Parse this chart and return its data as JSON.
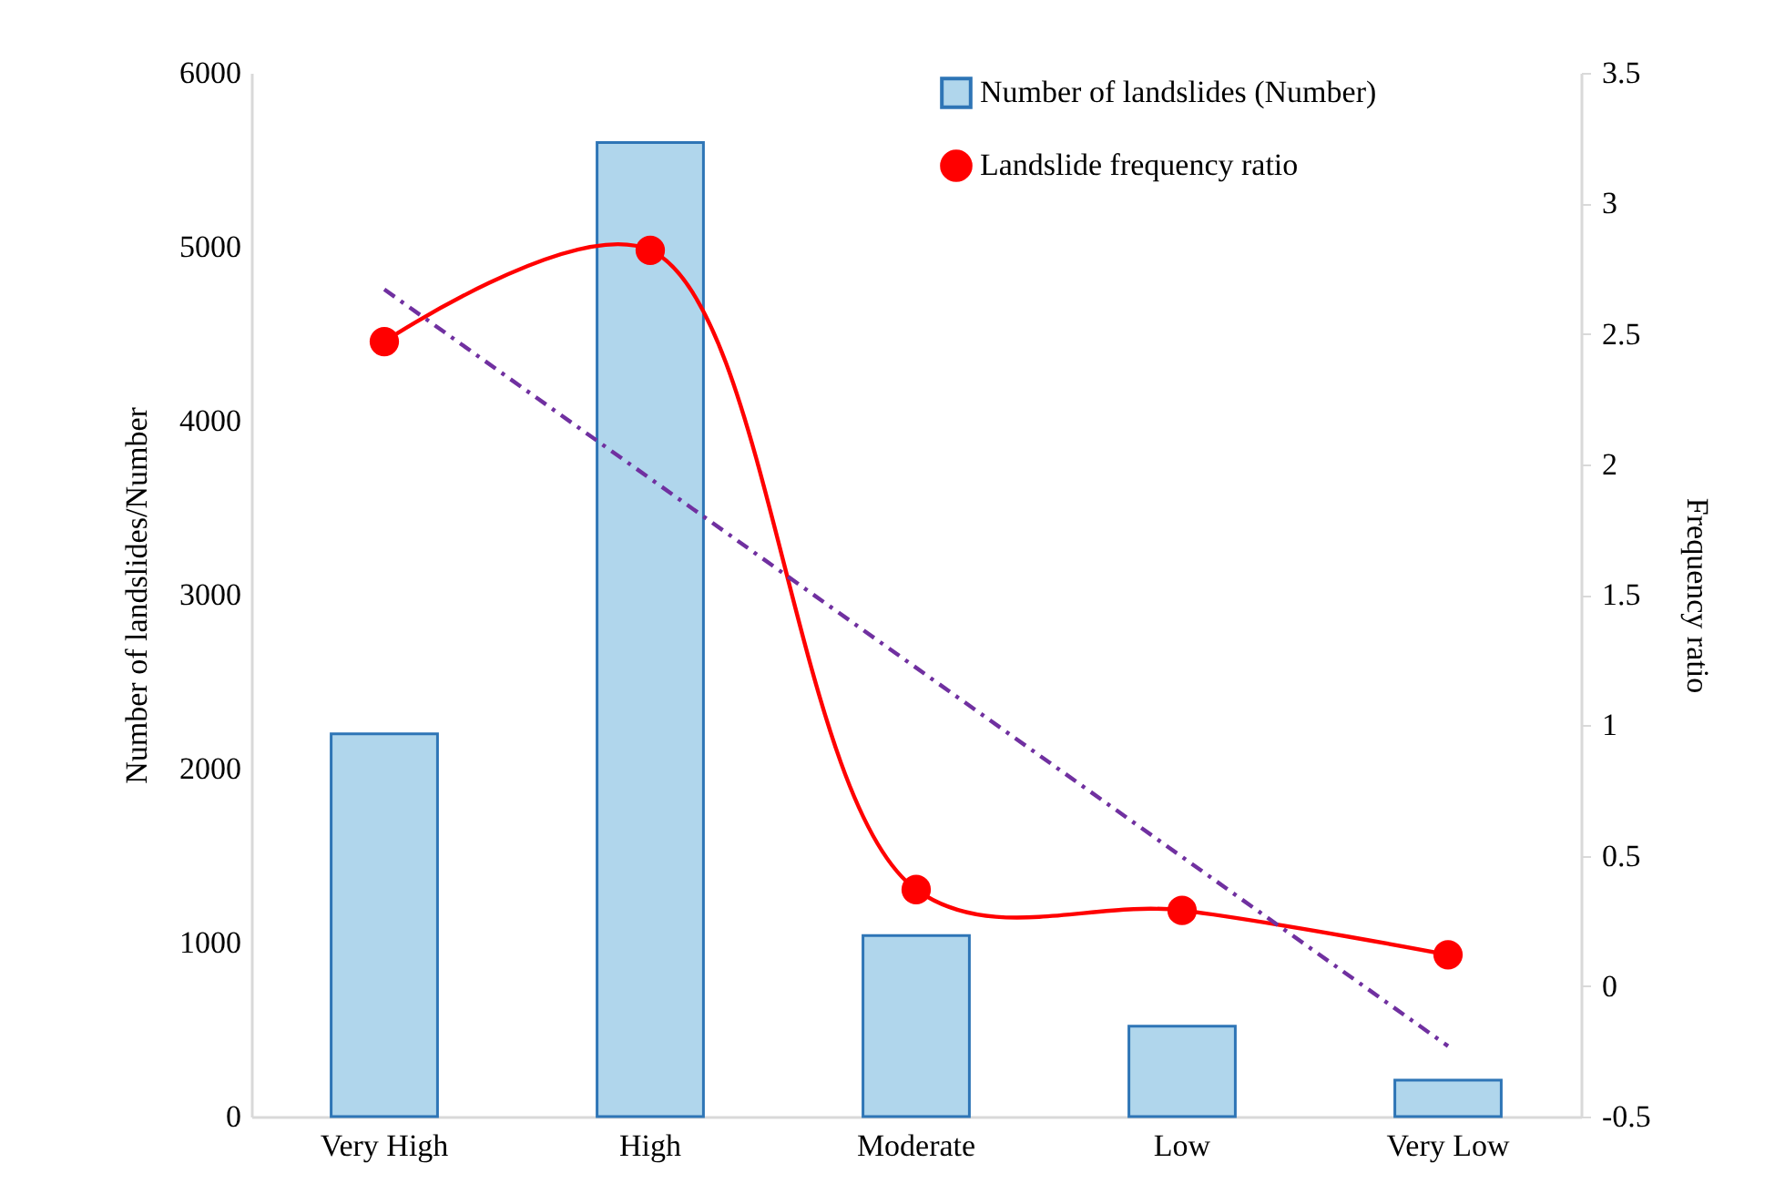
{
  "chart_data": {
    "type": "bar",
    "ylabel": "Number of landslides/Number",
    "y2label": "Frequency ratio",
    "categories": [
      "Very High",
      "High",
      "Moderate",
      "Low",
      "Very Low"
    ],
    "series": [
      {
        "name": "Number of landslides (Number)",
        "color": "#b0d6ec",
        "values": [
          2200,
          5600,
          1040,
          520,
          210
        ]
      },
      {
        "name": "Landslide frequency ratio",
        "type": "line",
        "axis": "y2",
        "color": "#ff0000",
        "marker": "circle",
        "line_style": "solid",
        "values": [
          2.47,
          2.82,
          0.37,
          0.29,
          0.12
        ]
      },
      {
        "type": "line",
        "axis": "y2",
        "color": "#7030a0",
        "marker": "none",
        "line_style": "dashed",
        "x": [
          "Very High",
          "Very Low"
        ],
        "values": [
          2.67,
          -0.23
        ]
      }
    ],
    "ylim": [
      0,
      6000
    ],
    "yticks": [
      0,
      1000,
      2000,
      3000,
      4000,
      5000,
      6000
    ],
    "y2lim": [
      -0.5,
      3.5
    ],
    "y2ticks": [
      -0.5,
      0,
      0.5,
      1,
      1.5,
      2,
      2.5,
      3,
      3.5
    ],
    "legend": "top right",
    "grid": false
  }
}
